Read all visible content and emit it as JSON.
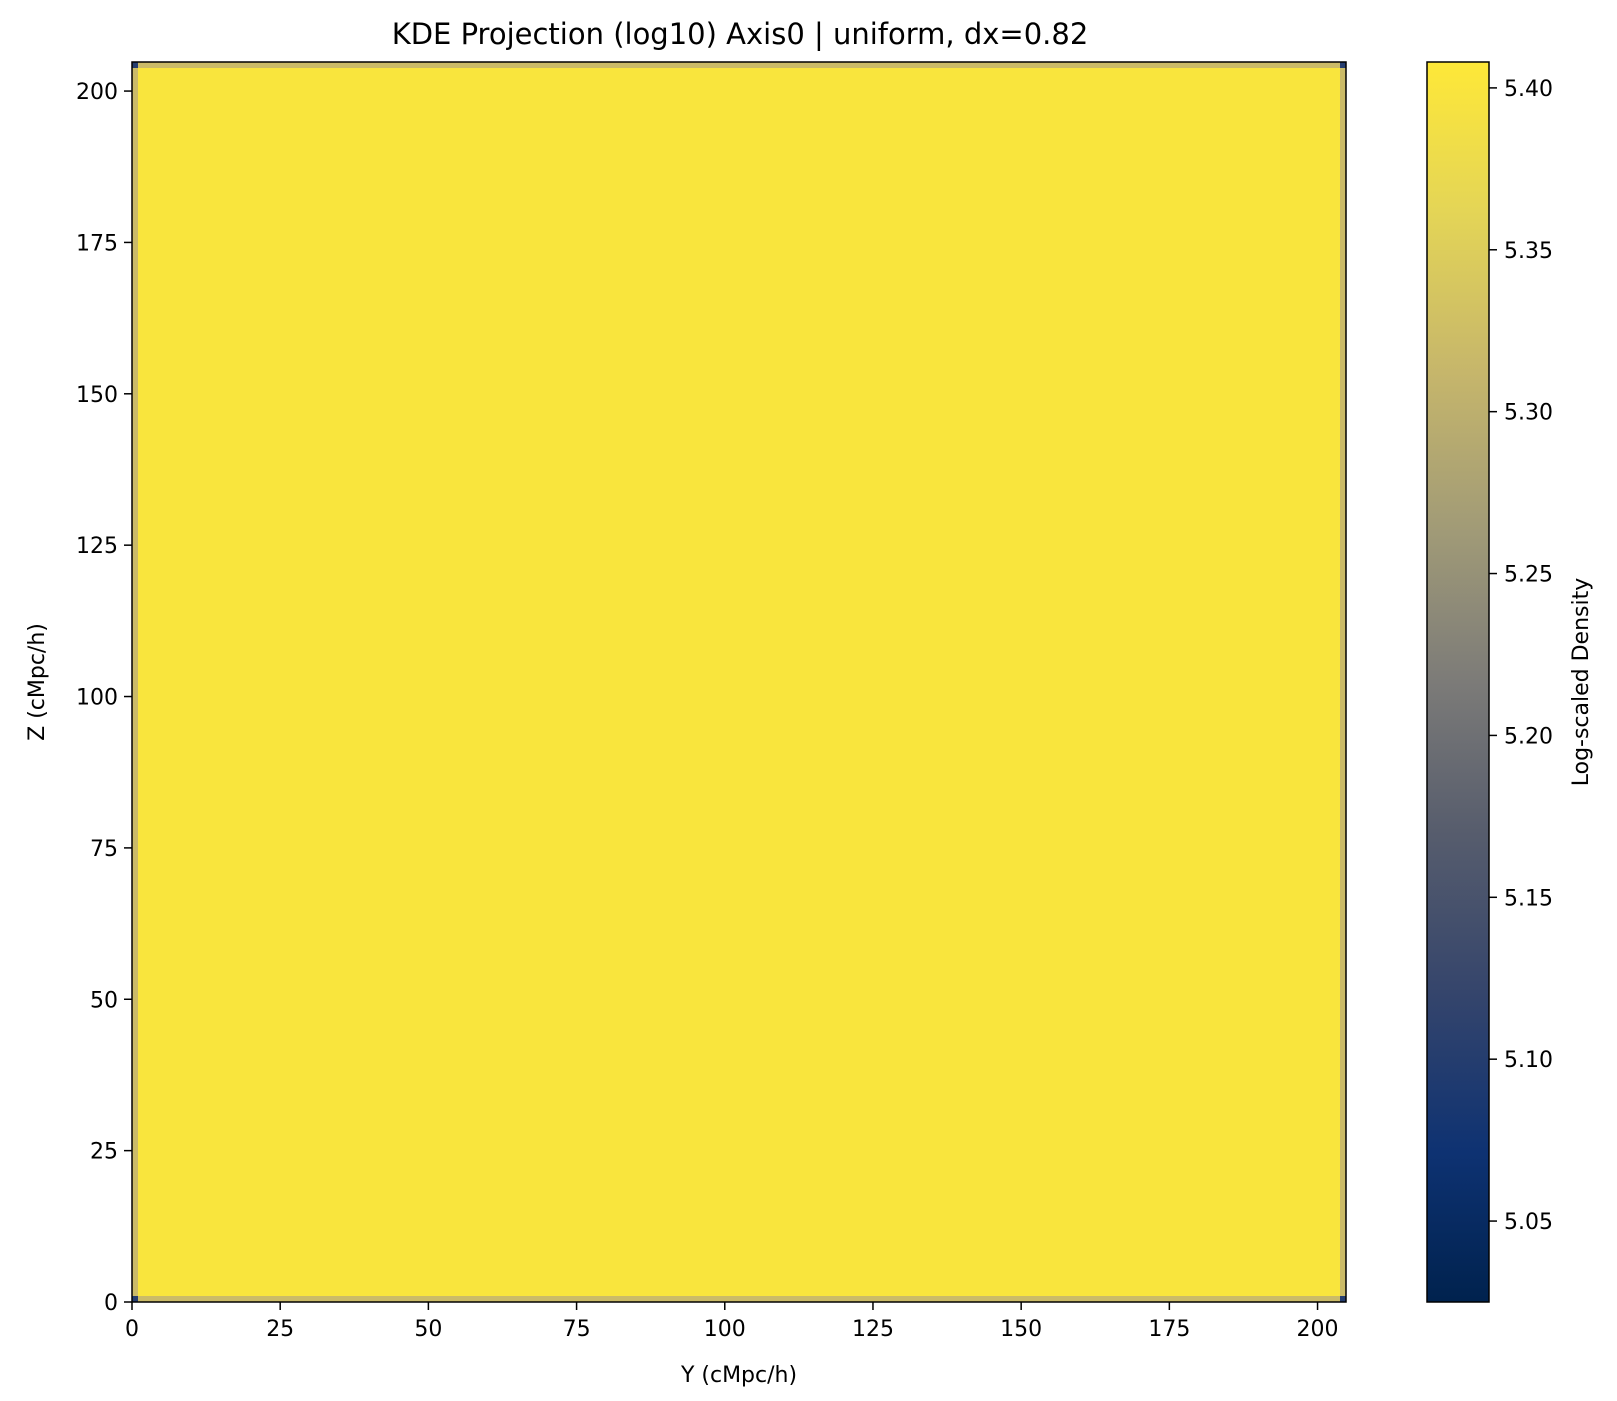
{
  "chart_data": {
    "type": "heatmap",
    "title": "KDE Projection (log10) Axis0 | uniform, dx=0.82",
    "xlabel": "Y (cMpc/h)",
    "ylabel": "Z (cMpc/h)",
    "xlim": [
      0,
      204.8
    ],
    "ylim": [
      0,
      204.8
    ],
    "x_ticks": [
      0,
      25,
      50,
      75,
      100,
      125,
      150,
      175,
      200
    ],
    "x_tick_labels": [
      "0",
      "25",
      "50",
      "75",
      "100",
      "125",
      "150",
      "175",
      "200"
    ],
    "y_ticks": [
      0,
      25,
      50,
      75,
      100,
      125,
      150,
      175,
      200
    ],
    "y_tick_labels": [
      "0",
      "25",
      "50",
      "75",
      "100",
      "125",
      "150",
      "175",
      "200"
    ],
    "colorbar": {
      "label": "Log-scaled Density",
      "colormap": "cividis",
      "vmin": 5.025,
      "vmax": 5.408,
      "ticks": [
        5.05,
        5.1,
        5.15,
        5.2,
        5.25,
        5.3,
        5.35,
        5.4
      ],
      "tick_labels": [
        "5.05",
        "5.10",
        "5.15",
        "5.20",
        "5.25",
        "5.30",
        "5.35",
        "5.40"
      ]
    },
    "interior_value": 5.4,
    "edge_value": 5.32,
    "corner_value": 5.1,
    "grid": false
  }
}
